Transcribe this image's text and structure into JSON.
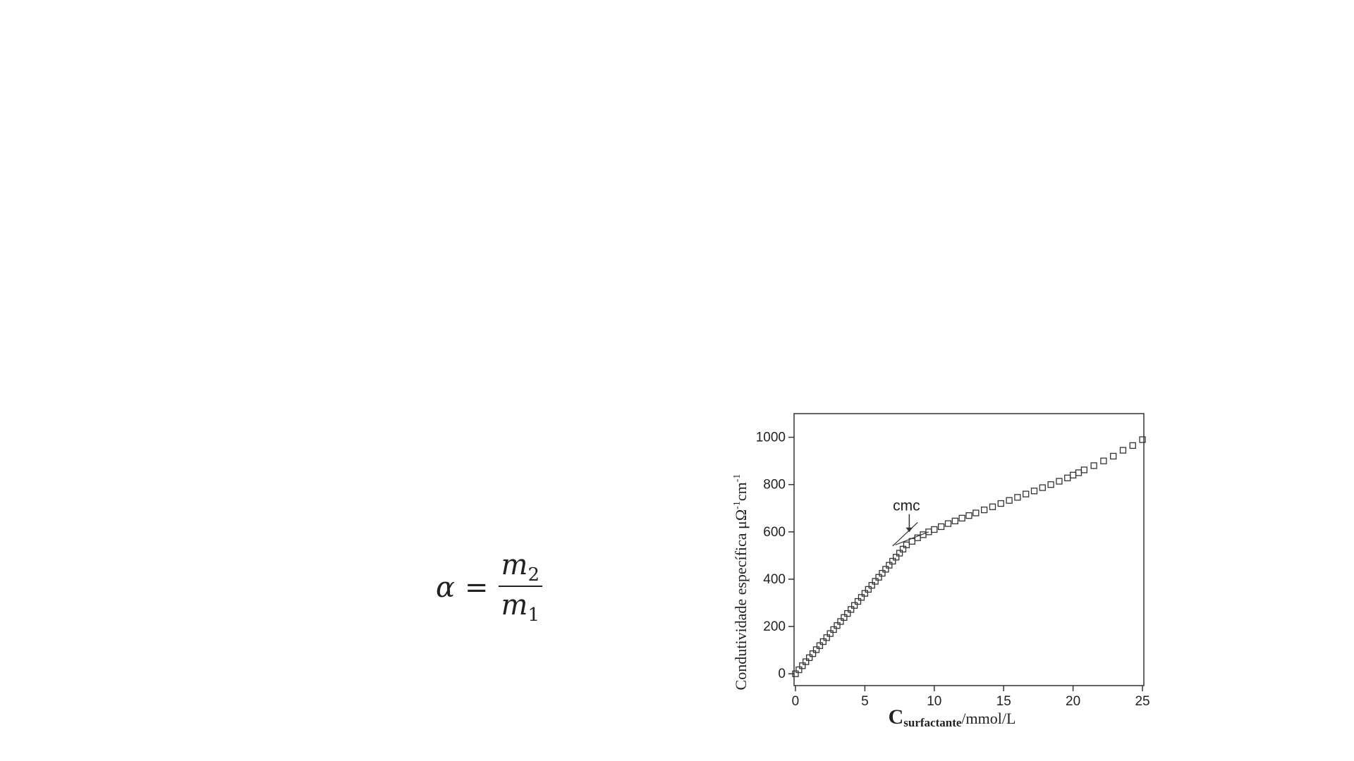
{
  "formula": {
    "lhs": "α",
    "operator": "=",
    "numerator": "m",
    "numerator_sub": "2",
    "denominator": "m",
    "denominator_sub": "1"
  },
  "chart_data": {
    "type": "scatter",
    "x_label": {
      "symbol": "C",
      "sub": "surfactante",
      "unit": "/mmol/L"
    },
    "y_label": {
      "main": "Condutividade específica μΩ",
      "exp1": "-1",
      "unit": "cm",
      "exp2": "-1"
    },
    "annotation": "cmc",
    "x": [
      0,
      0.25,
      0.5,
      0.75,
      1,
      1.25,
      1.5,
      1.75,
      2,
      2.25,
      2.5,
      2.75,
      3,
      3.25,
      3.5,
      3.75,
      4,
      4.25,
      4.5,
      4.75,
      5,
      5.25,
      5.5,
      5.75,
      6,
      6.25,
      6.5,
      6.75,
      7,
      7.25,
      7.5,
      7.75,
      8,
      8.4,
      8.8,
      9.2,
      9.6,
      10,
      10.5,
      11,
      11.5,
      12,
      12.5,
      13,
      13.6,
      14.2,
      14.8,
      15.4,
      16,
      16.6,
      17.2,
      17.8,
      18.4,
      19,
      19.6,
      20,
      20.4,
      20.8,
      21.5,
      22.2,
      22.9,
      23.6,
      24.3,
      25
    ],
    "values": [
      0,
      17,
      34,
      51,
      68,
      85,
      102,
      119,
      136,
      153,
      170,
      187,
      204,
      221,
      238,
      255,
      272,
      289,
      306,
      323,
      340,
      357,
      374,
      391,
      408,
      425,
      442,
      459,
      476,
      493,
      510,
      527,
      545,
      560,
      575,
      588,
      600,
      610,
      622,
      635,
      646,
      658,
      669,
      680,
      693,
      706,
      720,
      733,
      746,
      760,
      773,
      787,
      800,
      814,
      828,
      840,
      850,
      862,
      880,
      900,
      920,
      945,
      965,
      990
    ],
    "marker_color": "#333333",
    "xlim": [
      -0.1,
      25.1
    ],
    "ylim": [
      -50,
      1100
    ],
    "xticks": [
      0,
      5,
      10,
      15,
      20,
      25
    ],
    "yticks": [
      0,
      200,
      400,
      600,
      800,
      1000
    ]
  }
}
